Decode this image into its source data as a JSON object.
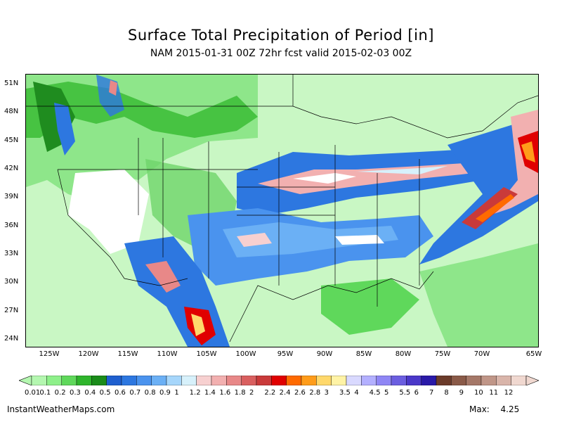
{
  "header": {
    "title": "Surface Total Precipitation of Period [in]",
    "subtitle": "NAM 2015-01-31 00Z 72hr fcst valid 2015-02-03 00Z"
  },
  "map": {
    "lat_labels": [
      "51N",
      "48N",
      "45N",
      "42N",
      "39N",
      "36N",
      "33N",
      "30N",
      "27N",
      "24N"
    ],
    "lon_labels": [
      "125W",
      "120W",
      "115W",
      "110W",
      "105W",
      "100W",
      "95W",
      "90W",
      "85W",
      "80W",
      "75W",
      "70W",
      "65W"
    ]
  },
  "legend": {
    "labels": [
      "0.01",
      "0.1",
      "0.2",
      "0.3",
      "0.4",
      "0.5",
      "0.6",
      "0.7",
      "0.8",
      "0.9",
      "1",
      "1.2",
      "1.4",
      "1.6",
      "1.8",
      "2",
      "2.2",
      "2.4",
      "2.6",
      "2.8",
      "3",
      "3.5",
      "4",
      "4.5",
      "5",
      "5.5",
      "6",
      "7",
      "8",
      "9",
      "10",
      "11",
      "12"
    ],
    "colors": [
      "#b4f7b0",
      "#8ef08a",
      "#5fd85b",
      "#2fb52c",
      "#1a8c1a",
      "#1f5fcf",
      "#2d77e0",
      "#4a93ee",
      "#6bb0f5",
      "#a6d6fb",
      "#d7f1fb",
      "#f7d0d0",
      "#f2b0b0",
      "#e88888",
      "#d95f5f",
      "#c93a3a",
      "#e00000",
      "#ff6a00",
      "#ff9c1a",
      "#ffd86b",
      "#fff3a6",
      "#d9d9ff",
      "#b3b0ff",
      "#8f86f5",
      "#6b5ee0",
      "#4a38c9",
      "#2a1aa8",
      "#6b3b2a",
      "#8a5a48",
      "#a57868",
      "#c09688",
      "#d9b5aa",
      "#f0d8d0"
    ]
  },
  "footer": {
    "site": "InstantWeatherMaps.com",
    "max_label": "Max:",
    "max_value": "4.25"
  }
}
